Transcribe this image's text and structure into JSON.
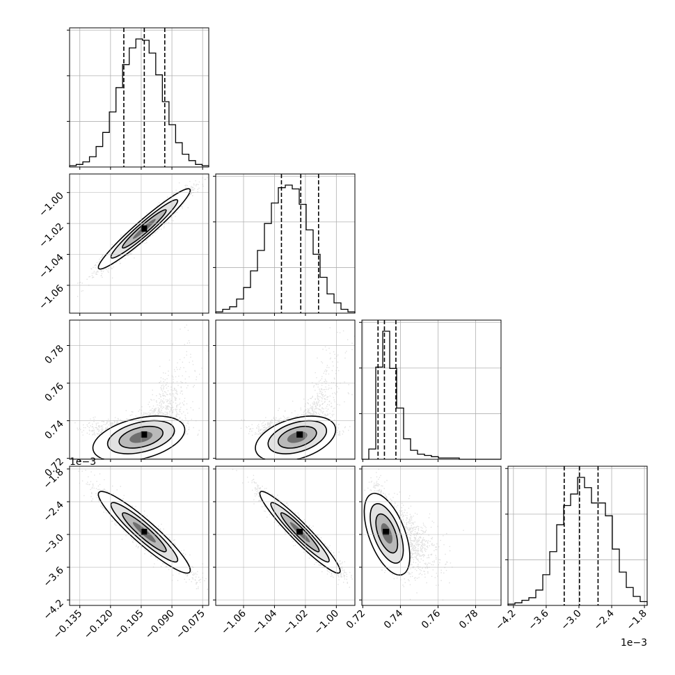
{
  "chart_data": {
    "type": "corner",
    "title": "",
    "parameters": [
      {
        "name": "",
        "range": [
          -0.14,
          -0.072
        ],
        "ticks": [
          "-0.135",
          "-0.120",
          "-0.105",
          "-0.090",
          "-0.075"
        ],
        "tick_values": [
          -0.135,
          -0.12,
          -0.105,
          -0.09,
          -0.075
        ],
        "quantiles": [
          -0.1135,
          -0.1035,
          -0.0935
        ],
        "offset_label": ""
      },
      {
        "name": "",
        "range": [
          -1.078,
          -0.988
        ],
        "ticks": [
          "-1.06",
          "-1.04",
          "-1.02",
          "-1.00"
        ],
        "tick_values": [
          -1.06,
          -1.04,
          -1.02,
          -1.0
        ],
        "quantiles": [
          -1.0355,
          -1.023,
          -1.0115
        ],
        "offset_label": ""
      },
      {
        "name": "",
        "range": [
          0.7195,
          0.7935
        ],
        "ticks": [
          "0.72",
          "0.74",
          "0.76",
          "0.78"
        ],
        "tick_values": [
          0.72,
          0.74,
          0.76,
          0.78
        ],
        "quantiles": [
          0.7281,
          0.7315,
          0.7376
        ],
        "offset_label": ""
      },
      {
        "name": "",
        "range": [
          -4.3,
          -1.75
        ],
        "ticks": [
          "-4.2",
          "-3.6",
          "-3.0",
          "-2.4",
          "-1.8"
        ],
        "tick_values": [
          -4.2,
          -3.6,
          -3.0,
          -2.4,
          -1.8
        ],
        "quantiles": [
          -3.27,
          -2.99,
          -2.65
        ],
        "offset_label": "1e−3"
      }
    ],
    "histograms": [
      {
        "counts": [
          1,
          2,
          4,
          8,
          16,
          27,
          43,
          62,
          80,
          93,
          100,
          99,
          89,
          72,
          51,
          33,
          19,
          10,
          5,
          2,
          1
        ]
      },
      {
        "counts": [
          1,
          3,
          5,
          11,
          20,
          33,
          49,
          70,
          86,
          98,
          100,
          97,
          85,
          65,
          46,
          28,
          15,
          8,
          3,
          1
        ]
      },
      {
        "counts": [
          0,
          8,
          72,
          100,
          71,
          40,
          16,
          7,
          4,
          3,
          2,
          1,
          1,
          1,
          0,
          0,
          0,
          0,
          0,
          0
        ]
      },
      {
        "counts": [
          1,
          2,
          4,
          6,
          12,
          24,
          42,
          63,
          78,
          87,
          100,
          92,
          80,
          80,
          70,
          44,
          26,
          14,
          7,
          3
        ]
      }
    ],
    "joint": [
      {
        "x": 0,
        "y": 1,
        "mean": [
          -0.1035,
          -1.0235
        ],
        "sd": [
          0.0102,
          0.0118
        ],
        "rho": 0.96,
        "skew": 0
      },
      {
        "x": 0,
        "y": 2,
        "mean": [
          -0.1035,
          0.7325
        ],
        "sd": [
          0.0102,
          0.0055
        ],
        "rho": 0.4,
        "skew": 1
      },
      {
        "x": 1,
        "y": 2,
        "mean": [
          -1.0235,
          0.7325
        ],
        "sd": [
          0.0118,
          0.0055
        ],
        "rho": 0.4,
        "skew": 1
      },
      {
        "x": 0,
        "y": 3,
        "mean": [
          -0.1035,
          -2.96
        ],
        "sd": [
          0.0102,
          0.34
        ],
        "rho": -0.93,
        "skew": 0
      },
      {
        "x": 1,
        "y": 3,
        "mean": [
          -1.0235,
          -2.96
        ],
        "sd": [
          0.0118,
          0.34
        ],
        "rho": -0.95,
        "skew": 0
      },
      {
        "x": 2,
        "y": 3,
        "mean": [
          0.7325,
          -2.96
        ],
        "sd": [
          0.0055,
          0.34
        ],
        "rho": -0.55,
        "skew": 2
      }
    ],
    "grid": true
  }
}
